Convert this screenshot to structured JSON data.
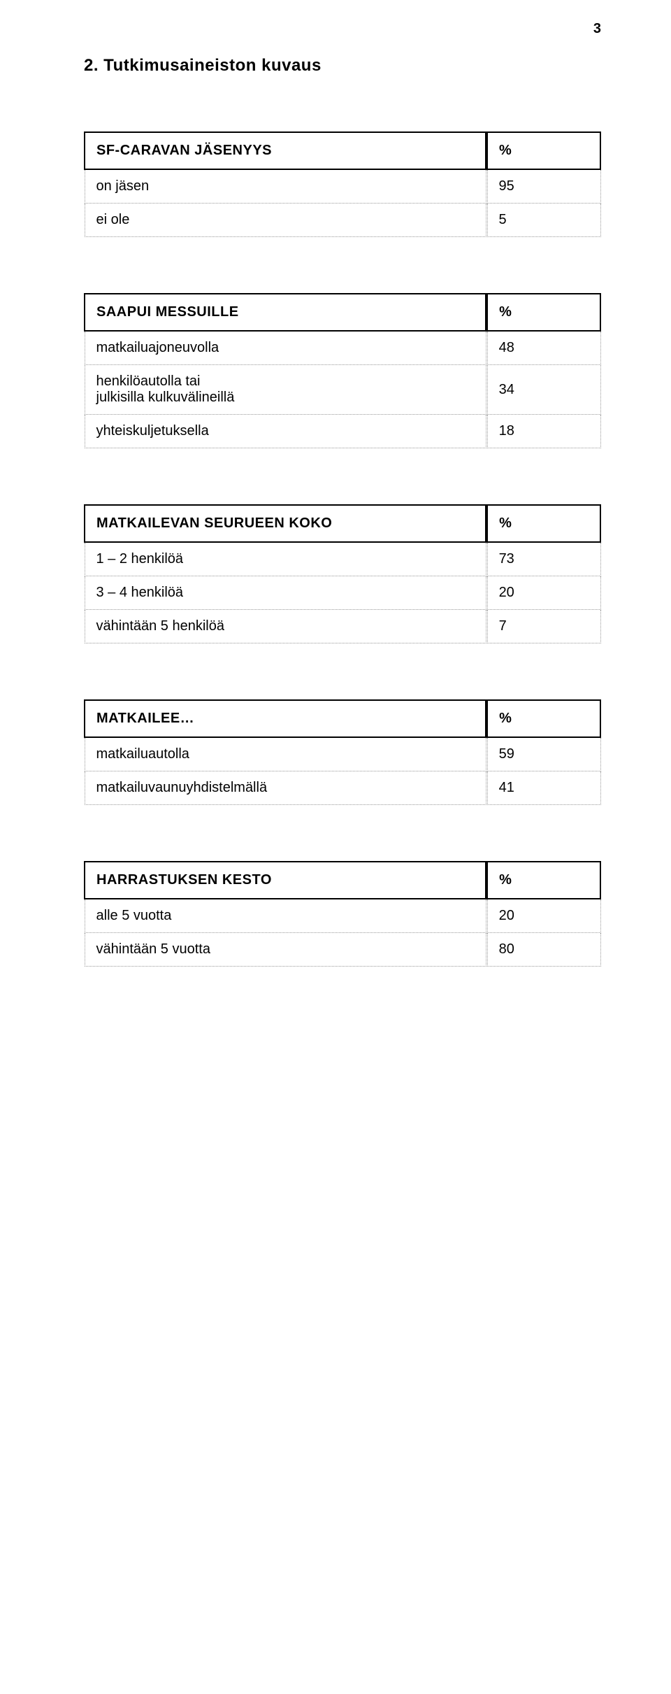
{
  "page_number": "3",
  "heading": "2. Tutkimusaineiston kuvaus",
  "tables": [
    {
      "header": {
        "label": "SF-CARAVAN JÄSENYYS",
        "value": "%"
      },
      "rows": [
        {
          "label": "on jäsen",
          "value": "95"
        },
        {
          "label": "ei ole",
          "value": "5"
        }
      ]
    },
    {
      "header": {
        "label": "SAAPUI MESSUILLE",
        "value": "%"
      },
      "rows": [
        {
          "label": "matkailuajoneuvolla",
          "value": "48"
        },
        {
          "label": "henkilöautolla tai\njulkisilla kulkuvälineillä",
          "value": "34"
        },
        {
          "label": "yhteiskuljetuksella",
          "value": "18"
        }
      ]
    },
    {
      "header": {
        "label": "MATKAILEVAN SEURUEEN KOKO",
        "value": "%"
      },
      "rows": [
        {
          "label": "1 – 2 henkilöä",
          "value": "73"
        },
        {
          "label": "3 – 4 henkilöä",
          "value": "20"
        },
        {
          "label": "vähintään 5 henkilöä",
          "value": "7"
        }
      ]
    },
    {
      "header": {
        "label": "MATKAILEE…",
        "value": "%"
      },
      "rows": [
        {
          "label": "matkailuautolla",
          "value": "59"
        },
        {
          "label": "matkailuvaunuyhdistelmällä",
          "value": "41"
        }
      ]
    },
    {
      "header": {
        "label": "HARRASTUKSEN KESTO",
        "value": "%"
      },
      "rows": [
        {
          "label": "alle 5 vuotta",
          "value": "20"
        },
        {
          "label": "vähintään 5 vuotta",
          "value": "80"
        }
      ]
    }
  ]
}
